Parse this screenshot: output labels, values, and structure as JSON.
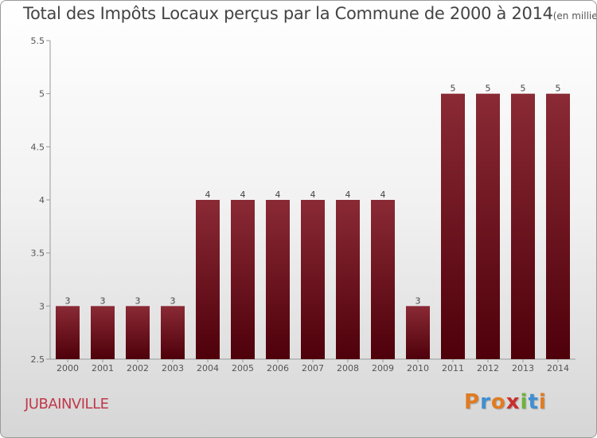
{
  "title_main": "Total des Impôts Locaux perçus par la Commune de 2000 à 2014",
  "title_unit": "(en milliers d'€)",
  "commune": "JUBAINVILLE",
  "brand": {
    "letters": [
      "P",
      "r",
      "o",
      "x",
      "i",
      "t",
      "i"
    ],
    "colors": [
      "#e07b22",
      "#3f8fd2",
      "#e07b22",
      "#c9302c",
      "#6fb23d",
      "#3f8fd2",
      "#e07b22"
    ]
  },
  "chart_data": {
    "type": "bar",
    "title": "Total des Impôts Locaux perçus par la Commune de 2000 à 2014",
    "xlabel": "",
    "ylabel": "",
    "categories": [
      "2000",
      "2001",
      "2002",
      "2003",
      "2004",
      "2005",
      "2006",
      "2007",
      "2008",
      "2009",
      "2010",
      "2011",
      "2012",
      "2013",
      "2014"
    ],
    "values": [
      3,
      3,
      3,
      3,
      4,
      4,
      4,
      4,
      4,
      4,
      3,
      5,
      5,
      5,
      5
    ],
    "value_labels": [
      "3",
      "3",
      "3",
      "3",
      "4",
      "4",
      "4",
      "4",
      "4",
      "4",
      "3",
      "5",
      "5",
      "5",
      "5"
    ],
    "ylim": [
      2.5,
      5.5
    ],
    "yticks": [
      2.5,
      3,
      3.5,
      4,
      4.5,
      5,
      5.5
    ],
    "ytick_labels": [
      "2.5",
      "3",
      "3.5",
      "4",
      "4.5",
      "5",
      "5.5"
    ],
    "grid": false,
    "bar_color": "#7a1420"
  }
}
